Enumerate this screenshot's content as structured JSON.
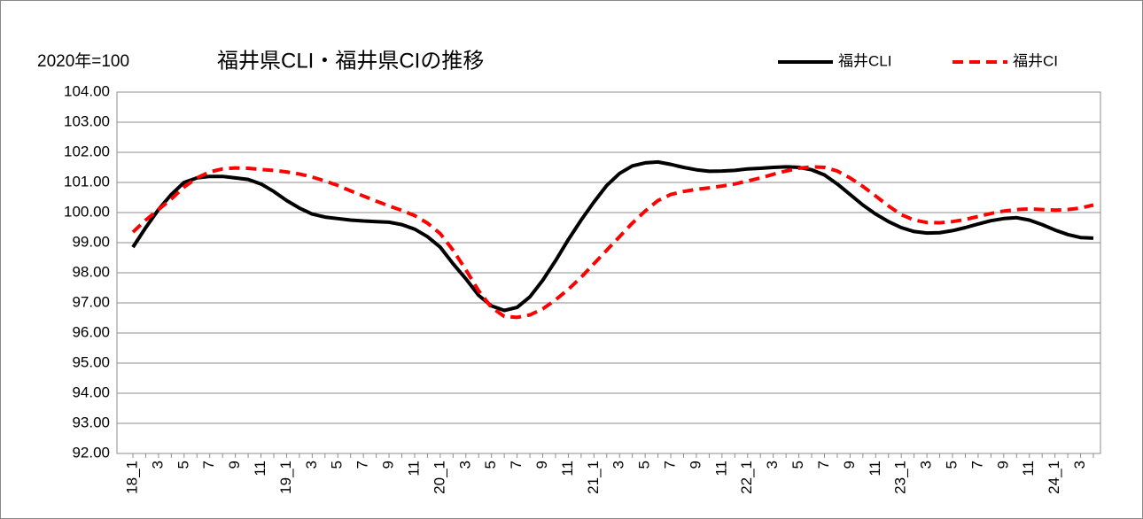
{
  "chart_data": {
    "type": "line",
    "title": "福井県CLI・福井県CIの推移",
    "annotation": "2020年=100",
    "categories": [
      "18_1",
      null,
      "3",
      null,
      "5",
      null,
      "7",
      null,
      "9",
      null,
      "11",
      null,
      "19_1",
      null,
      "3",
      null,
      "5",
      null,
      "7",
      null,
      "9",
      null,
      "11",
      null,
      "20_1",
      null,
      "3",
      null,
      "5",
      null,
      "7",
      null,
      "9",
      null,
      "11",
      null,
      "21_1",
      null,
      "3",
      null,
      "5",
      null,
      "7",
      null,
      "9",
      null,
      "11",
      null,
      "22_1",
      null,
      "3",
      null,
      "5",
      null,
      "7",
      null,
      "9",
      null,
      "11",
      null,
      "23_1",
      null,
      "3",
      null,
      "5",
      null,
      "7",
      null,
      "9",
      null,
      "11",
      null,
      "24_1",
      null,
      "3",
      null
    ],
    "series": [
      {
        "name": "福井CLI",
        "color": "#000000",
        "dash": "solid",
        "values": [
          98.85,
          99.5,
          100.1,
          100.6,
          101.0,
          101.15,
          101.2,
          101.2,
          101.15,
          101.1,
          100.95,
          100.7,
          100.4,
          100.15,
          99.95,
          99.85,
          99.8,
          99.75,
          99.72,
          99.7,
          99.68,
          99.6,
          99.45,
          99.2,
          98.85,
          98.3,
          97.8,
          97.25,
          96.9,
          96.75,
          96.85,
          97.2,
          97.75,
          98.4,
          99.1,
          99.75,
          100.35,
          100.9,
          101.3,
          101.55,
          101.65,
          101.68,
          101.6,
          101.5,
          101.42,
          101.37,
          101.38,
          101.4,
          101.45,
          101.47,
          101.5,
          101.52,
          101.5,
          101.42,
          101.25,
          100.95,
          100.6,
          100.25,
          99.95,
          99.7,
          99.5,
          99.37,
          99.32,
          99.33,
          99.4,
          99.5,
          99.62,
          99.73,
          99.8,
          99.83,
          99.75,
          99.6,
          99.42,
          99.27,
          99.17,
          99.15
        ]
      },
      {
        "name": "福井CI",
        "color": "#ff0000",
        "dash": "dashed",
        "values": [
          99.35,
          99.75,
          100.1,
          100.45,
          100.85,
          101.15,
          101.35,
          101.45,
          101.48,
          101.47,
          101.43,
          101.4,
          101.35,
          101.28,
          101.18,
          101.05,
          100.9,
          100.72,
          100.55,
          100.38,
          100.22,
          100.07,
          99.9,
          99.65,
          99.3,
          98.75,
          98.1,
          97.4,
          96.85,
          96.55,
          96.52,
          96.6,
          96.8,
          97.1,
          97.45,
          97.85,
          98.3,
          98.75,
          99.2,
          99.65,
          100.05,
          100.4,
          100.6,
          100.7,
          100.77,
          100.82,
          100.88,
          100.95,
          101.05,
          101.15,
          101.27,
          101.38,
          101.47,
          101.52,
          101.5,
          101.38,
          101.15,
          100.87,
          100.55,
          100.22,
          99.93,
          99.75,
          99.67,
          99.66,
          99.7,
          99.77,
          99.87,
          99.97,
          100.05,
          100.1,
          100.12,
          100.1,
          100.08,
          100.1,
          100.15,
          100.25
        ]
      }
    ],
    "ylim": [
      92,
      104
    ],
    "yticks": [
      {
        "value": 92,
        "label": "92.00"
      },
      {
        "value": 93,
        "label": "93.00"
      },
      {
        "value": 94,
        "label": "94.00"
      },
      {
        "value": 95,
        "label": "95.00"
      },
      {
        "value": 96,
        "label": "96.00"
      },
      {
        "value": 97,
        "label": "97.00"
      },
      {
        "value": 98,
        "label": "98.00"
      },
      {
        "value": 99,
        "label": "99.00"
      },
      {
        "value": 100,
        "label": "100.00"
      },
      {
        "value": 101,
        "label": "101.00"
      },
      {
        "value": 102,
        "label": "102.00"
      },
      {
        "value": 103,
        "label": "103.00"
      },
      {
        "value": 104,
        "label": "104.00"
      }
    ],
    "grid": true,
    "legend": "top-right"
  }
}
